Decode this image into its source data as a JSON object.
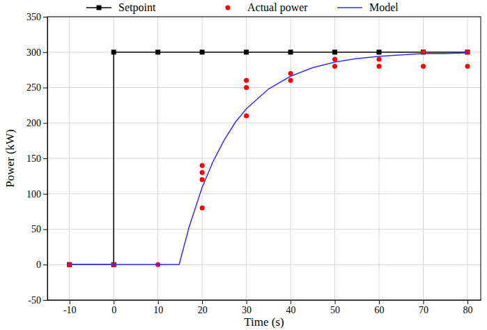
{
  "chart_data": {
    "type": "line",
    "x_label": "Time (s)",
    "y_label": "Power (kW)",
    "xlim": [
      -15,
      83
    ],
    "ylim": [
      -50,
      350
    ],
    "xticks": [
      -10,
      0,
      10,
      20,
      30,
      40,
      50,
      60,
      70,
      80
    ],
    "yticks": [
      -50,
      0,
      50,
      100,
      150,
      200,
      250,
      300,
      350
    ],
    "grid": true,
    "legend": "top",
    "series": [
      {
        "name": "Setpoint",
        "type": "line",
        "color": "#000000",
        "marker": "square",
        "line_style": "solid",
        "x": [
          -10,
          0,
          0,
          10,
          20,
          30,
          40,
          50,
          60,
          70,
          80
        ],
        "values": [
          0,
          0,
          300,
          300,
          300,
          300,
          300,
          300,
          300,
          300,
          300
        ]
      },
      {
        "name": "Actual power",
        "type": "scatter",
        "color": "#ff0000",
        "marker": "circle",
        "x": [
          -10,
          0,
          10,
          20,
          20,
          20,
          20,
          30,
          30,
          30,
          40,
          40,
          50,
          50,
          60,
          60,
          70,
          70,
          80,
          80
        ],
        "values": [
          0,
          0,
          0,
          140,
          130,
          120,
          80,
          260,
          250,
          210,
          270,
          260,
          290,
          280,
          290,
          280,
          300,
          280,
          300,
          280
        ]
      },
      {
        "name": "Model",
        "type": "line",
        "color": "#3333ff",
        "line_style": "solid",
        "x": [
          -10,
          0,
          10,
          14.8,
          17,
          20,
          22.5,
          25,
          27.5,
          30,
          35,
          40,
          45,
          50,
          55,
          60,
          65,
          70,
          75,
          80
        ],
        "values": [
          0,
          0,
          0,
          0,
          52,
          109,
          146,
          176,
          201,
          220,
          248,
          266,
          278,
          286,
          291,
          294,
          296,
          298,
          298,
          299
        ]
      }
    ]
  }
}
